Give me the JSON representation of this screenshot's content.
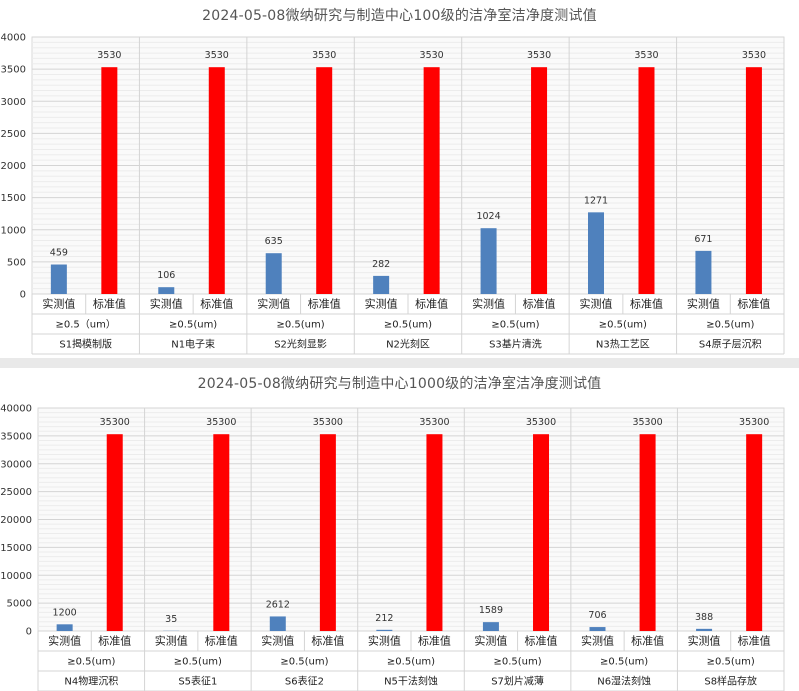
{
  "chart_data": [
    {
      "type": "bar",
      "title": "2024-05-08微纳研究与制造中心100级的洁净室洁净度测试值",
      "ylim": [
        0,
        4000
      ],
      "yticks": [
        0,
        500,
        1000,
        1500,
        2000,
        2500,
        3000,
        3500,
        4000
      ],
      "grid": true,
      "series_labels": [
        "实测值",
        "标准值"
      ],
      "groups": [
        {
          "particle": "≥0.5（um）",
          "location": "S1揭模制版",
          "measured": 459,
          "standard": 3530
        },
        {
          "particle": "≥0.5(um)",
          "location": "N1电子束",
          "measured": 106,
          "standard": 3530
        },
        {
          "particle": "≥0.5(um)",
          "location": "S2光刻显影",
          "measured": 635,
          "standard": 3530
        },
        {
          "particle": "≥0.5(um)",
          "location": "N2光刻区",
          "measured": 282,
          "standard": 3530
        },
        {
          "particle": "≥0.5(um)",
          "location": "S3基片清洗",
          "measured": 1024,
          "standard": 3530
        },
        {
          "particle": "≥0.5(um)",
          "location": "N3热工艺区",
          "measured": 1271,
          "standard": 3530
        },
        {
          "particle": "≥0.5(um)",
          "location": "S4原子层沉积",
          "measured": 671,
          "standard": 3530
        }
      ],
      "colors": {
        "measured": "#4f81bd",
        "standard": "#ff0000"
      }
    },
    {
      "type": "bar",
      "title": "2024-05-08微纳研究与制造中心1000级的洁净室洁净度测试值",
      "ylim": [
        0,
        40000
      ],
      "yticks": [
        0,
        5000,
        10000,
        15000,
        20000,
        25000,
        30000,
        35000,
        40000
      ],
      "grid": true,
      "series_labels": [
        "实测值",
        "标准值"
      ],
      "groups": [
        {
          "particle": "≥0.5(um)",
          "location": "N4物理沉积",
          "measured": 1200,
          "standard": 35300
        },
        {
          "particle": "≥0.5(um)",
          "location": "S5表征1",
          "measured": 35,
          "standard": 35300
        },
        {
          "particle": "≥0.5(um)",
          "location": "S6表征2",
          "measured": 2612,
          "standard": 35300
        },
        {
          "particle": "≥0.5(um)",
          "location": "N5干法刻蚀",
          "measured": 212,
          "standard": 35300
        },
        {
          "particle": "≥0.5(um)",
          "location": "S7划片减薄",
          "measured": 1589,
          "standard": 35300
        },
        {
          "particle": "≥0.5(um)",
          "location": "N6湿法刻蚀",
          "measured": 706,
          "standard": 35300
        },
        {
          "particle": "≥0.5(um)",
          "location": "S8样品存放",
          "measured": 388,
          "standard": 35300
        }
      ],
      "colors": {
        "measured": "#4f81bd",
        "standard": "#ff0000"
      }
    }
  ]
}
